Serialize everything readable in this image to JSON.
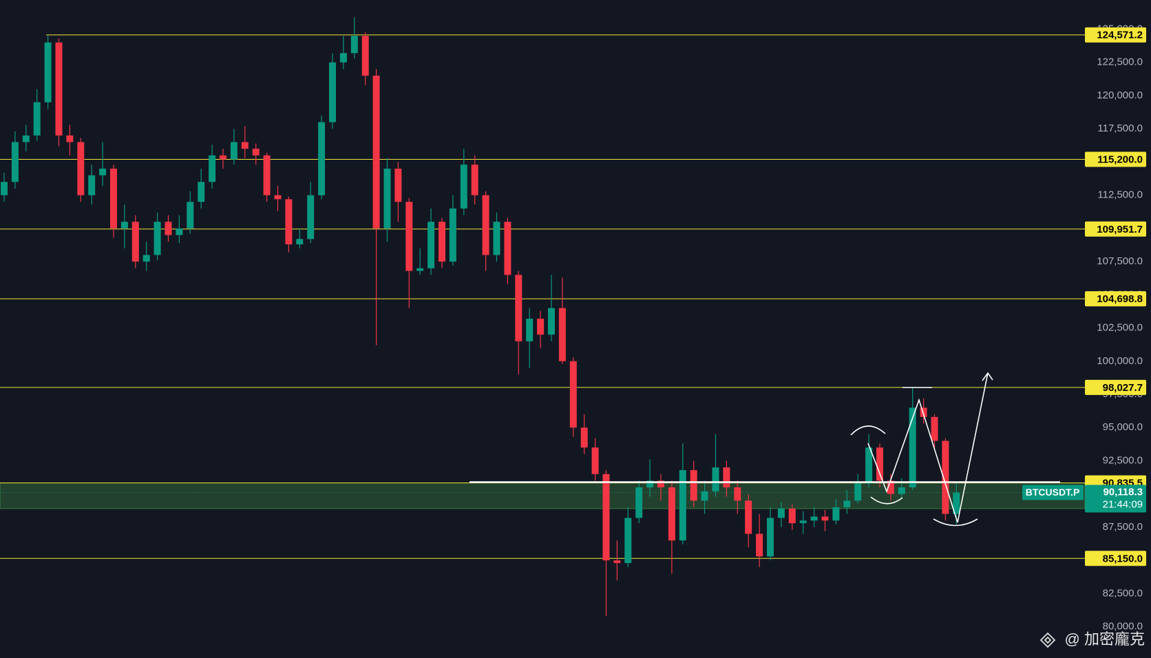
{
  "chart_data": {
    "type": "candlestick",
    "ylim": [
      77650,
      127200
    ],
    "yticks": [
      {
        "value": 80000,
        "label": "80,000.0"
      },
      {
        "value": 82500,
        "label": "82,500.0"
      },
      {
        "value": 85000,
        "label": "85,000.0"
      },
      {
        "value": 87500,
        "label": "87,500.0"
      },
      {
        "value": 90000,
        "label": "90,000.0"
      },
      {
        "value": 92500,
        "label": "92,500.0"
      },
      {
        "value": 95000,
        "label": "95,000.0"
      },
      {
        "value": 97500,
        "label": "97,500.0"
      },
      {
        "value": 100000,
        "label": "100,000.0"
      },
      {
        "value": 102500,
        "label": "102,500.0"
      },
      {
        "value": 105000,
        "label": "105,000.0"
      },
      {
        "value": 107500,
        "label": "107,500.0"
      },
      {
        "value": 110000,
        "label": "110,000.0"
      },
      {
        "value": 112500,
        "label": "112,500.0"
      },
      {
        "value": 115000,
        "label": "115,000.0"
      },
      {
        "value": 117500,
        "label": "117,500.0"
      },
      {
        "value": 120000,
        "label": "120,000.0"
      },
      {
        "value": 122500,
        "label": "122,500.0"
      },
      {
        "value": 125000,
        "label": "125,000.0"
      }
    ],
    "grid": false,
    "up_color": "#089981",
    "down_color": "#f23645",
    "series": [
      {
        "open": [
          112500,
          113500,
          116500,
          117000,
          119500,
          124000,
          117000,
          116500,
          112500,
          114000,
          114500,
          110000,
          110500,
          107500,
          108000,
          110500,
          109500,
          110000,
          112000,
          113500,
          115500,
          115200,
          116500,
          116000,
          115500,
          112500,
          112200,
          108800,
          109200,
          112500,
          118000,
          122500,
          123200,
          124500,
          121500,
          110000,
          114500,
          112000,
          106800,
          107000,
          110500,
          107500,
          111500,
          114800,
          112500,
          108000,
          110500,
          106500,
          101500,
          103200,
          102000,
          104000,
          100000,
          95000,
          93500,
          91500,
          85000,
          84800,
          88200,
          90500,
          91000,
          90500,
          86500,
          91800,
          89500,
          90200,
          92000,
          90500,
          89500,
          87000,
          85300,
          88200,
          88900,
          87800,
          88000,
          88300,
          88000,
          89000,
          89500,
          90800,
          93500,
          91000,
          90000,
          90500,
          96500,
          95800,
          94000,
          88500
        ],
        "high": [
          114200,
          117300,
          117800,
          120500,
          124571,
          124300,
          117800,
          116800,
          114800,
          116500,
          114800,
          111800,
          111000,
          109000,
          111200,
          111000,
          111000,
          112800,
          114500,
          116300,
          116000,
          117500,
          117700,
          116400,
          115700,
          113200,
          112400,
          110000,
          113500,
          118500,
          123200,
          124500,
          125900,
          124800,
          122000,
          115300,
          115000,
          112300,
          108500,
          111500,
          110800,
          112500,
          116000,
          115500,
          112800,
          111200,
          110800,
          106800,
          104000,
          103800,
          106500,
          106300,
          100300,
          96000,
          94200,
          91800,
          86500,
          89000,
          91000,
          92600,
          91500,
          91000,
          93800,
          92500,
          91000,
          94500,
          92500,
          91000,
          90000,
          88500,
          89000,
          89400,
          89200,
          88700,
          89000,
          88800,
          89600,
          90300,
          91500,
          94500,
          93800,
          91500,
          91200,
          98028,
          97200,
          96000,
          94200,
          90800
        ],
        "low": [
          112000,
          113000,
          115800,
          116600,
          119000,
          116200,
          115500,
          112000,
          111800,
          113200,
          109300,
          108500,
          107000,
          106800,
          107600,
          109000,
          108900,
          109600,
          111500,
          113000,
          114500,
          114800,
          115300,
          114800,
          112000,
          111300,
          108200,
          108500,
          108900,
          112200,
          117500,
          122000,
          122800,
          120800,
          101200,
          109000,
          110500,
          104000,
          106500,
          106500,
          107000,
          107200,
          111000,
          111800,
          106800,
          107500,
          105800,
          99000,
          99500,
          101000,
          101500,
          99800,
          94300,
          93000,
          91000,
          80800,
          83500,
          84500,
          87800,
          89800,
          89500,
          84000,
          86200,
          89000,
          88500,
          89800,
          89800,
          88500,
          86000,
          84500,
          85000,
          87500,
          87300,
          87000,
          87500,
          87200,
          87700,
          88500,
          89300,
          90500,
          90500,
          89500,
          89700,
          90300,
          95300,
          93500,
          88000,
          87700
        ],
        "close": [
          113500,
          116500,
          117000,
          119500,
          124000,
          117000,
          116500,
          112500,
          114000,
          114500,
          110000,
          110500,
          107500,
          108000,
          110500,
          109500,
          110000,
          112000,
          113500,
          115500,
          115200,
          116500,
          116000,
          115500,
          112500,
          112200,
          108800,
          109200,
          112500,
          118000,
          122500,
          123200,
          124500,
          121500,
          110000,
          114500,
          112000,
          106800,
          107000,
          110500,
          107500,
          111500,
          114800,
          112500,
          108000,
          110500,
          106500,
          101500,
          103200,
          102000,
          104000,
          100000,
          95000,
          93500,
          91500,
          85000,
          84800,
          88200,
          90500,
          91000,
          90500,
          86500,
          91800,
          89500,
          90200,
          92000,
          90500,
          89500,
          87000,
          85300,
          88200,
          88900,
          87800,
          88000,
          88300,
          88000,
          89000,
          89500,
          90800,
          93500,
          91000,
          90000,
          90500,
          96500,
          95800,
          94000,
          88500,
          90100
        ]
      }
    ],
    "levels": [
      {
        "value": 124571.2,
        "label": "124,571.2"
      },
      {
        "value": 115200.0,
        "label": "115,200.0"
      },
      {
        "value": 109951.7,
        "label": "109,951.7"
      },
      {
        "value": 104698.8,
        "label": "104,698.8"
      },
      {
        "value": 98027.7,
        "label": "98,027.7"
      },
      {
        "value": 90835.5,
        "label": "90,835.5"
      },
      {
        "value": 85150.0,
        "label": "85,150.0"
      }
    ],
    "level_color": "#f5e63a",
    "zone": {
      "low": 88900,
      "high": 90835.5,
      "color": "#4caf50"
    },
    "price": {
      "symbol": "BTCUSDT.P",
      "value": 90118.3,
      "label": "90,118.3",
      "countdown": "21:44:09"
    },
    "watermark": "@ 加密龐克"
  }
}
